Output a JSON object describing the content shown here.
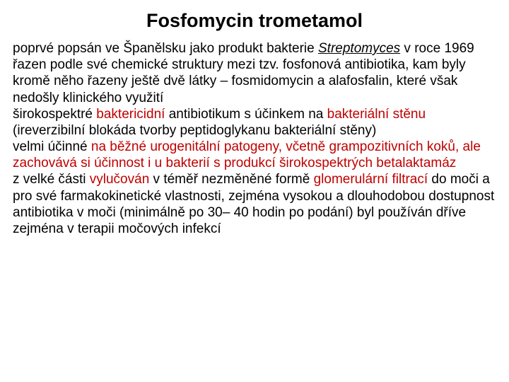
{
  "title": "Fosfomycin trometamol",
  "colors": {
    "text": "#000000",
    "highlight": "#c00000",
    "background": "#ffffff"
  },
  "title_fontsize": 27,
  "body_fontsize": 19,
  "body": {
    "segments": [
      {
        "text": "poprvé popsán ve Španělsku jako produkt bakterie ",
        "color": "n"
      },
      {
        "text": "Streptomyces",
        "color": "n",
        "italic": true,
        "underline": true
      },
      {
        "text": " v roce 1969\n",
        "color": "n"
      },
      {
        "text": "řazen podle své chemické struktury mezi tzv. fosfonová antibiotika, kam byly kromě něho řazeny ještě dvě látky – fosmidomycin a alafosfalin, které však nedošly klinického využití\n",
        "color": "n"
      },
      {
        "text": "širokospektré ",
        "color": "n"
      },
      {
        "text": "baktericidní",
        "color": "r"
      },
      {
        "text": " antibiotikum s účinkem na ",
        "color": "n"
      },
      {
        "text": "bakteriální stěnu",
        "color": "r"
      },
      {
        "text": " (ireverzibilní blokáda tvorby peptidoglykanu bakteriální stěny)\n",
        "color": "n"
      },
      {
        "text": "velmi účinné ",
        "color": "n"
      },
      {
        "text": "na běžné urogenitální patogeny, včetně grampozitivních koků, ale zachovává si účinnost i u bakterií s produkcí širokospektrých betalaktamáz",
        "color": "r"
      },
      {
        "text": "\nz velké části ",
        "color": "n"
      },
      {
        "text": "vylučován",
        "color": "r"
      },
      {
        "text": " v téměř nezměněné formě ",
        "color": "n"
      },
      {
        "text": "glomerulární filtrací",
        "color": "r"
      },
      {
        "text": " do moči a pro své farmakokinetické vlastnosti, zejména vysokou a dlouhodobou dostupnost antibiotika v moči (minimálně po 30– 40 hodin po podání) byl používán dříve zejména v terapii močových infekcí",
        "color": "n"
      }
    ]
  }
}
